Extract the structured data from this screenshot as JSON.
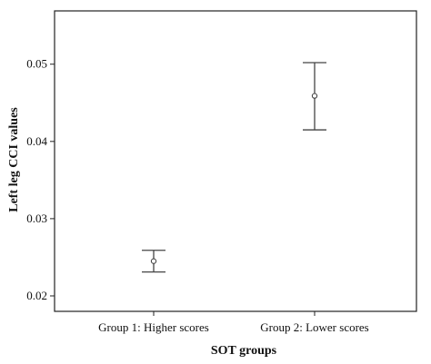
{
  "chart_data": {
    "type": "scatter",
    "subtype": "error-bar",
    "title": "",
    "xlabel": "SOT groups",
    "ylabel": "Left leg CCI values",
    "categories": [
      "Group 1: Higher scores",
      "Group 2: Lower scores"
    ],
    "points": [
      {
        "category": "Group 1: Higher scores",
        "mean": 0.0245,
        "lower": 0.0231,
        "upper": 0.0259
      },
      {
        "category": "Group 2: Lower scores",
        "mean": 0.0459,
        "lower": 0.0415,
        "upper": 0.0502
      }
    ],
    "yticks": [
      0.02,
      0.03,
      0.04,
      0.05
    ],
    "ytick_labels": [
      "0.02",
      "0.03",
      "0.04",
      "0.05"
    ],
    "ylim": [
      0.018,
      0.0569
    ],
    "grid": false,
    "colors": {
      "marks": "#444444",
      "frame": "#222222"
    }
  }
}
